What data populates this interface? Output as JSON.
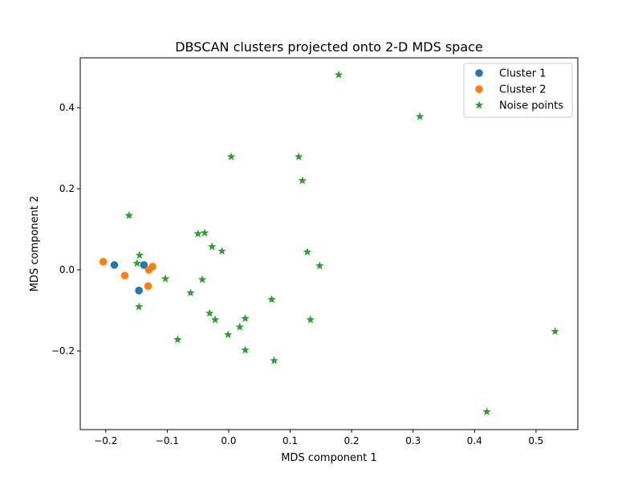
{
  "chart_data": {
    "type": "scatter",
    "title": "DBSCAN clusters projected onto 2-D MDS space",
    "xlabel": "MDS component 1",
    "ylabel": "MDS component 2",
    "xlim": [
      -0.2415,
      0.568
    ],
    "ylim": [
      -0.394,
      0.523
    ],
    "xticks": [
      -0.2,
      -0.1,
      0.0,
      0.1,
      0.2,
      0.3,
      0.4,
      0.5
    ],
    "xtick_labels": [
      "−0.2",
      "−0.1",
      "0.0",
      "0.1",
      "0.2",
      "0.3",
      "0.4",
      "0.5"
    ],
    "yticks": [
      -0.2,
      0.0,
      0.2,
      0.4
    ],
    "ytick_labels": [
      "−0.2",
      "0.0",
      "0.2",
      "0.4"
    ],
    "grid": false,
    "legend_position": "top-right",
    "series": [
      {
        "name": "Cluster 1",
        "marker": "circle",
        "color": "#1f77b4",
        "points": [
          [
            -0.186,
            0.012
          ],
          [
            -0.138,
            0.012
          ],
          [
            -0.146,
            -0.051
          ]
        ]
      },
      {
        "name": "Cluster 2",
        "marker": "circle",
        "color": "#ff7f0e",
        "points": [
          [
            -0.204,
            0.02
          ],
          [
            -0.169,
            -0.014
          ],
          [
            -0.13,
            0.0
          ],
          [
            -0.124,
            0.008
          ],
          [
            -0.131,
            -0.04
          ]
        ]
      },
      {
        "name": "Noise points",
        "marker": "star",
        "color": "#2ca02c",
        "points": [
          [
            -0.162,
            0.134
          ],
          [
            -0.145,
            0.036
          ],
          [
            -0.149,
            0.016
          ],
          [
            -0.05,
            0.089
          ],
          [
            -0.039,
            0.091
          ],
          [
            -0.027,
            0.057
          ],
          [
            -0.011,
            0.046
          ],
          [
            -0.103,
            -0.022
          ],
          [
            -0.043,
            -0.024
          ],
          [
            -0.062,
            -0.057
          ],
          [
            -0.146,
            -0.091
          ],
          [
            -0.031,
            -0.107
          ],
          [
            -0.022,
            -0.123
          ],
          [
            0.027,
            -0.12
          ],
          [
            0.018,
            -0.141
          ],
          [
            -0.001,
            -0.16
          ],
          [
            -0.083,
            -0.172
          ],
          [
            0.027,
            -0.198
          ],
          [
            0.004,
            0.279
          ],
          [
            0.114,
            0.279
          ],
          [
            0.12,
            0.22
          ],
          [
            0.179,
            0.481
          ],
          [
            0.311,
            0.378
          ],
          [
            0.128,
            0.044
          ],
          [
            0.148,
            0.01
          ],
          [
            0.07,
            -0.073
          ],
          [
            0.133,
            -0.123
          ],
          [
            0.074,
            -0.224
          ],
          [
            0.531,
            -0.152
          ],
          [
            0.42,
            -0.35
          ]
        ]
      }
    ]
  }
}
